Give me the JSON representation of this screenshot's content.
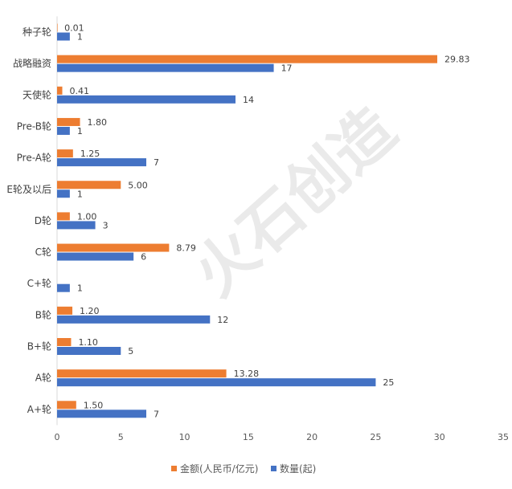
{
  "chart_data": {
    "type": "bar",
    "orientation": "horizontal",
    "categories": [
      "种子轮",
      "战略融资",
      "天使轮",
      "Pre-B轮",
      "Pre-A轮",
      "E轮及以后",
      "D轮",
      "C轮",
      "C+轮",
      "B轮",
      "B+轮",
      "A轮",
      "A+轮"
    ],
    "series": [
      {
        "name": "金额(人民币/亿元)",
        "color": "#ED7D31",
        "values": [
          0.01,
          29.83,
          0.41,
          1.8,
          1.25,
          5.0,
          1.0,
          8.79,
          null,
          1.2,
          1.1,
          13.28,
          1.5
        ],
        "labels": [
          "0.01",
          "29.83",
          "0.41",
          "1.80",
          "1.25",
          "5.00",
          "1.00",
          "8.79",
          "",
          "1.20",
          "1.10",
          "13.28",
          "1.50"
        ]
      },
      {
        "name": "数量(起)",
        "color": "#4472C4",
        "values": [
          1,
          17,
          14,
          1,
          7,
          1,
          3,
          6,
          1,
          12,
          5,
          25,
          7
        ],
        "labels": [
          "1",
          "17",
          "14",
          "1",
          "7",
          "1",
          "3",
          "6",
          "1",
          "12",
          "5",
          "25",
          "7"
        ]
      }
    ],
    "xlim": [
      0,
      35
    ],
    "xticks": [
      "0",
      "5",
      "10",
      "15",
      "20",
      "25",
      "30",
      "35"
    ],
    "grid": false,
    "legend": "bottom"
  },
  "watermark": {
    "text": "火石创造"
  }
}
